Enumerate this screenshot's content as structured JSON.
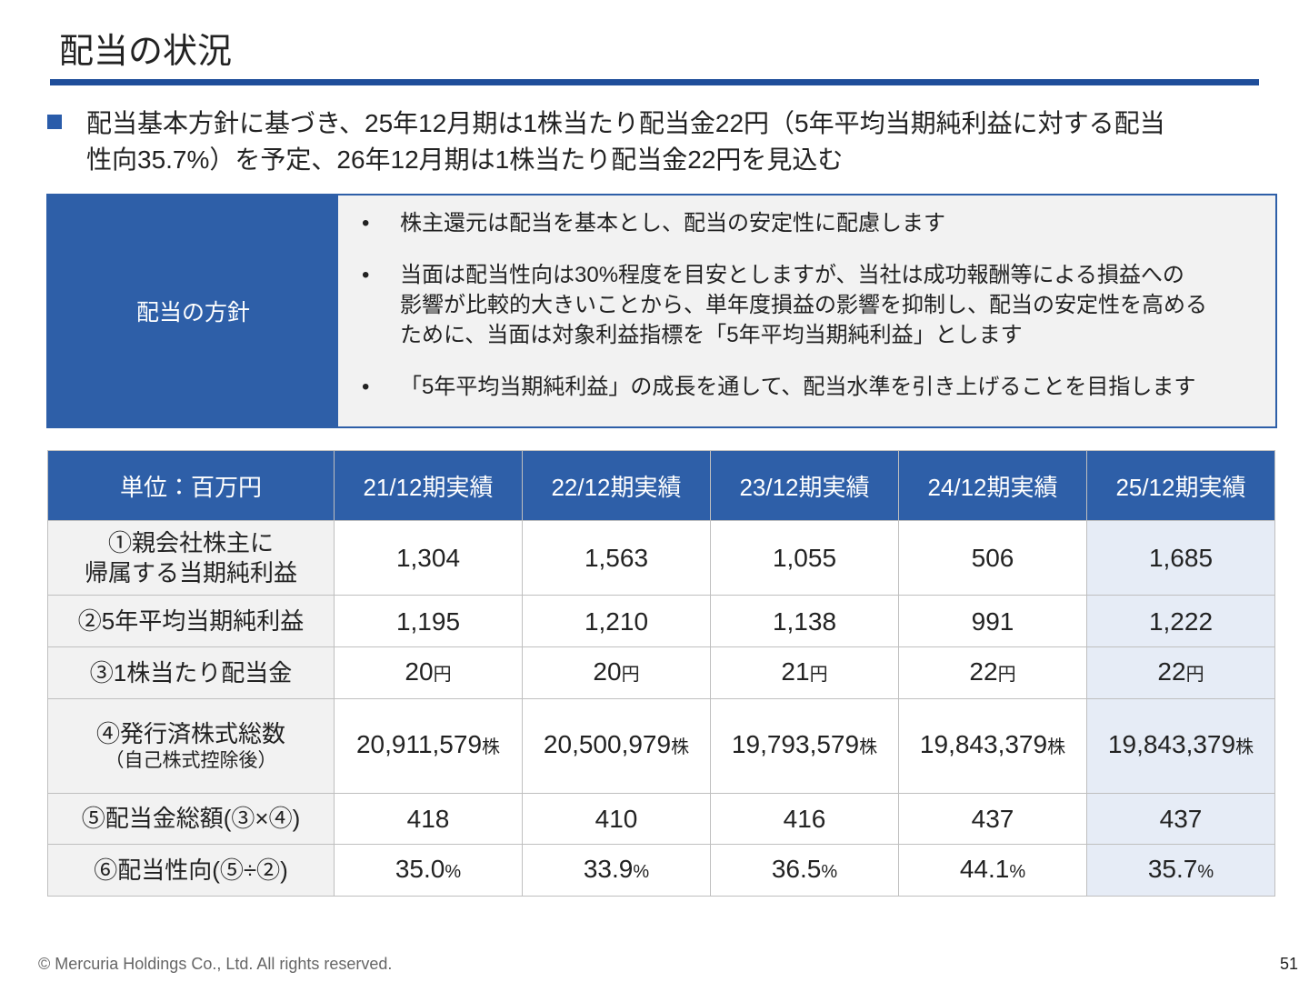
{
  "header": {
    "title": "配当の状況"
  },
  "summary": {
    "lines": [
      "配当基本方針に基づき、25年12月期は1株当たり配当金22円（5年平均当期純利益に対する配当",
      "性向35.7%）を予定、26年12月期は1株当たり配当金22円を見込む"
    ]
  },
  "policy": {
    "label": "配当の方針",
    "items": [
      [
        "株主還元は配当を基本とし、配当の安定性に配慮します"
      ],
      [
        "当面は配当性向は30%程度を目安としますが、当社は成功報酬等による損益への",
        "影響が比較的大きいことから、単年度損益の影響を抑制し、配当の安定性を高める",
        "ために、当面は対象利益指標を「5年平均当期純利益」とします"
      ],
      [
        "「5年平均当期純利益」の成長を通して、配当水準を引き上げることを目指します"
      ]
    ]
  },
  "table": {
    "header": [
      "単位：百万円",
      "21/12期実績",
      "22/12期実績",
      "23/12期実績",
      "24/12期実績",
      "25/12期実績"
    ],
    "rows": [
      {
        "label": [
          "①親会社株主に",
          "帰属する当期純利益"
        ],
        "cells": [
          {
            "value": "1,304"
          },
          {
            "value": "1,563"
          },
          {
            "value": "1,055"
          },
          {
            "value": "506"
          },
          {
            "value": "1,685"
          }
        ]
      },
      {
        "label": [
          "②5年平均当期純利益"
        ],
        "cells": [
          {
            "value": "1,195"
          },
          {
            "value": "1,210"
          },
          {
            "value": "1,138"
          },
          {
            "value": "991"
          },
          {
            "value": "1,222"
          }
        ]
      },
      {
        "label": [
          "③1株当たり配当金"
        ],
        "cells": [
          {
            "value": "20",
            "unit": "円"
          },
          {
            "value": "20",
            "unit": "円"
          },
          {
            "value": "21",
            "unit": "円"
          },
          {
            "value": "22",
            "unit": "円"
          },
          {
            "value": "22",
            "unit": "円"
          }
        ]
      },
      {
        "label": [
          "④発行済株式総数"
        ],
        "sub": "（自己株式控除後）",
        "cells": [
          {
            "value": "20,911,579",
            "unit": "株"
          },
          {
            "value": "20,500,979",
            "unit": "株"
          },
          {
            "value": "19,793,579",
            "unit": "株"
          },
          {
            "value": "19,843,379",
            "unit": "株"
          },
          {
            "value": "19,843,379",
            "unit": "株"
          }
        ]
      },
      {
        "label": [
          "⑤配当金総額(③×④)"
        ],
        "cells": [
          {
            "value": "418"
          },
          {
            "value": "410"
          },
          {
            "value": "416"
          },
          {
            "value": "437"
          },
          {
            "value": "437"
          }
        ]
      },
      {
        "label": [
          "⑥配当性向(⑤÷②)"
        ],
        "cells": [
          {
            "value": "35.0",
            "unit": "%"
          },
          {
            "value": "33.9",
            "unit": "%"
          },
          {
            "value": "36.5",
            "unit": "%"
          },
          {
            "value": "44.1",
            "unit": "%"
          },
          {
            "value": "35.7",
            "unit": "%"
          }
        ]
      }
    ]
  },
  "footer": {
    "copyright": "© Mercuria Holdings Co., Ltd. All rights reserved.",
    "page": "51"
  }
}
